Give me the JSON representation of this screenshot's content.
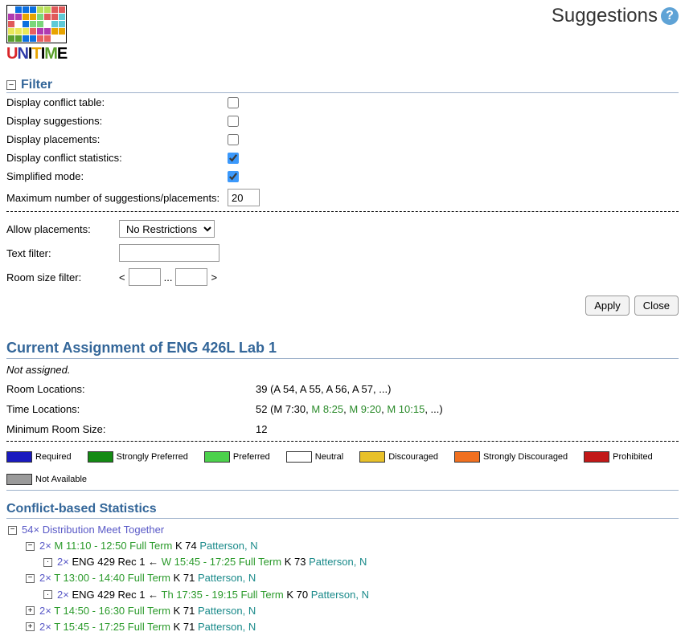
{
  "page": {
    "title": "Suggestions"
  },
  "logo": {
    "text_parts": [
      {
        "t": "U",
        "c": "#d9262a"
      },
      {
        "t": "N",
        "c": "#2e3aa8"
      },
      {
        "t": "I",
        "c": "#000"
      },
      {
        "t": "T",
        "c": "#e8a400"
      },
      {
        "t": "I",
        "c": "#000"
      },
      {
        "t": "M",
        "c": "#5aa02c"
      },
      {
        "t": "E",
        "c": "#000"
      }
    ],
    "grid_colors": [
      "#ffffff",
      "#0b6fe0",
      "#0b6fe0",
      "#0b6fe0",
      "#b9e05a",
      "#b9e05a",
      "#e05a5a",
      "#e05a5a",
      "#b03ab0",
      "#b03ab0",
      "#e8a400",
      "#e8a400",
      "#7ad67a",
      "#e05a5a",
      "#e05a5a",
      "#5fcad6",
      "#e05a5a",
      "#ffffff",
      "#0b6fe0",
      "#7ad67a",
      "#7ad67a",
      "#ffffff",
      "#5fcad6",
      "#5fcad6",
      "#e8e85a",
      "#e8e85a",
      "#e8e85a",
      "#e86060",
      "#b03ab0",
      "#b03ab0",
      "#e8a400",
      "#e8a400",
      "#5aa02c",
      "#5aa02c",
      "#0b6fe0",
      "#0b6fe0",
      "#e86060",
      "#e86060",
      "#ffffff",
      "#ffffff"
    ]
  },
  "filter": {
    "heading": "Filter",
    "rows": [
      {
        "label": "Display conflict table:",
        "checked": false
      },
      {
        "label": "Display suggestions:",
        "checked": false
      },
      {
        "label": "Display placements:",
        "checked": false
      },
      {
        "label": "Display conflict statistics:",
        "checked": true
      },
      {
        "label": "Simplified mode:",
        "checked": true
      }
    ],
    "max_label": "Maximum number of suggestions/placements:",
    "max_value": "20",
    "allow_label": "Allow placements:",
    "allow_value": "No Restrictions",
    "allow_options": [
      "No Restrictions"
    ],
    "text_filter_label": "Text filter:",
    "text_filter_value": "",
    "room_size_label": "Room size filter:",
    "room_size_min": "",
    "room_size_max": "",
    "room_size_lt": "<",
    "room_size_sep": "...",
    "room_size_gt": ">",
    "apply_label": "Apply",
    "close_label": "Close"
  },
  "assignment": {
    "heading": "Current Assignment of ENG 426L Lab 1",
    "status": "Not assigned.",
    "rows": {
      "room_loc_label": "Room Locations:",
      "room_loc_value": "39 (A 54, A 55, A 56, A 57, ...)",
      "time_loc_label": "Time Locations:",
      "time_loc_prefix": "52 (M 7:30, ",
      "time_loc_links": [
        "M 8:25",
        "M 9:20",
        "M 10:15"
      ],
      "time_loc_suffix": ", ...)",
      "min_room_label": "Minimum Room Size:",
      "min_room_value": "12"
    }
  },
  "legend": [
    {
      "label": "Required",
      "color": "#1a1abf"
    },
    {
      "label": "Strongly Preferred",
      "color": "#138a13"
    },
    {
      "label": "Preferred",
      "color": "#4cd14c"
    },
    {
      "label": "Neutral",
      "color": "#ffffff"
    },
    {
      "label": "Discouraged",
      "color": "#e8c12a"
    },
    {
      "label": "Strongly Discouraged",
      "color": "#f07020"
    },
    {
      "label": "Prohibited",
      "color": "#c21818"
    },
    {
      "label": "Not Available",
      "color": "#9a9a9a"
    }
  ],
  "cbs": {
    "heading": "Conflict-based Statistics",
    "root": {
      "toggle": "−",
      "count": "54×",
      "label": "Distribution Meet Together"
    },
    "nodes": [
      {
        "toggle": "−",
        "count": "2×",
        "time": "M 11:10 - 12:50 Full Term",
        "room": "K 74",
        "inst": "Patterson, N",
        "child": {
          "toggle": "·",
          "count": "2×",
          "course": "ENG 429 Rec 1",
          "arrow": "←",
          "time": "W 15:45 - 17:25 Full Term",
          "room": "K 73",
          "inst": "Patterson, N"
        }
      },
      {
        "toggle": "−",
        "count": "2×",
        "time": "T 13:00 - 14:40 Full Term",
        "room": "K 71",
        "inst": "Patterson, N",
        "child": {
          "toggle": "·",
          "count": "2×",
          "course": "ENG 429 Rec 1",
          "arrow": "←",
          "time": "Th 17:35 - 19:15 Full Term",
          "room": "K 70",
          "inst": "Patterson, N"
        }
      },
      {
        "toggle": "+",
        "count": "2×",
        "time": "T 14:50 - 16:30 Full Term",
        "room": "K 71",
        "inst": "Patterson, N"
      },
      {
        "toggle": "+",
        "count": "2×",
        "time": "T 15:45 - 17:25 Full Term",
        "room": "K 71",
        "inst": "Patterson, N"
      }
    ]
  }
}
